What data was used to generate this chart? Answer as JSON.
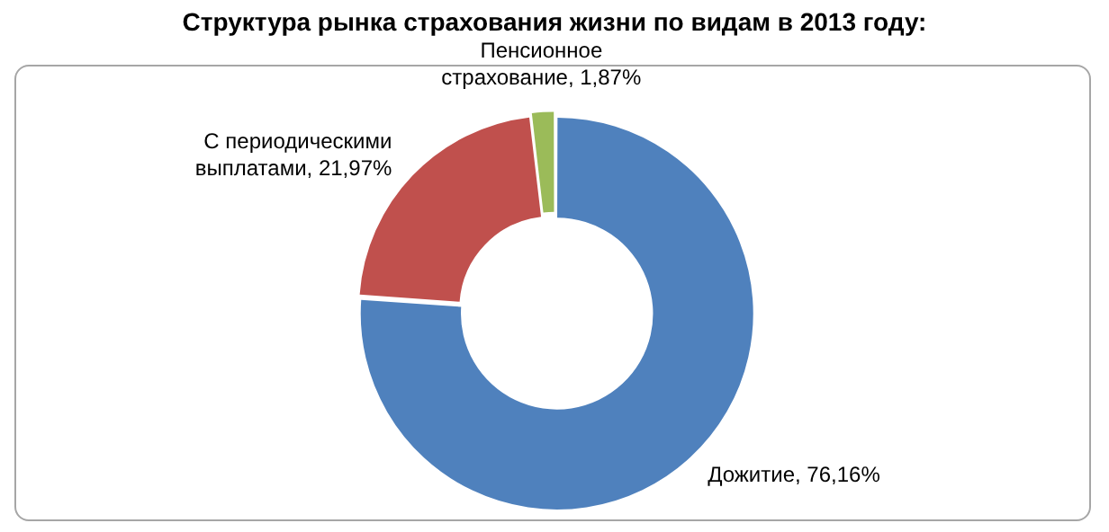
{
  "chart_data": {
    "type": "donut",
    "title": "Структура рынка страхования жизни по видам в 2013 году:",
    "categories": [
      "Дожитие",
      "С периодическими выплатами",
      "Пенсионное страхование"
    ],
    "values": [
      76.16,
      21.97,
      1.87
    ],
    "colors": [
      "#4f81bd",
      "#c0504d",
      "#9bbb59"
    ],
    "value_labels": [
      "76,16%",
      "21,97%",
      "1,87%"
    ],
    "legend": false
  }
}
